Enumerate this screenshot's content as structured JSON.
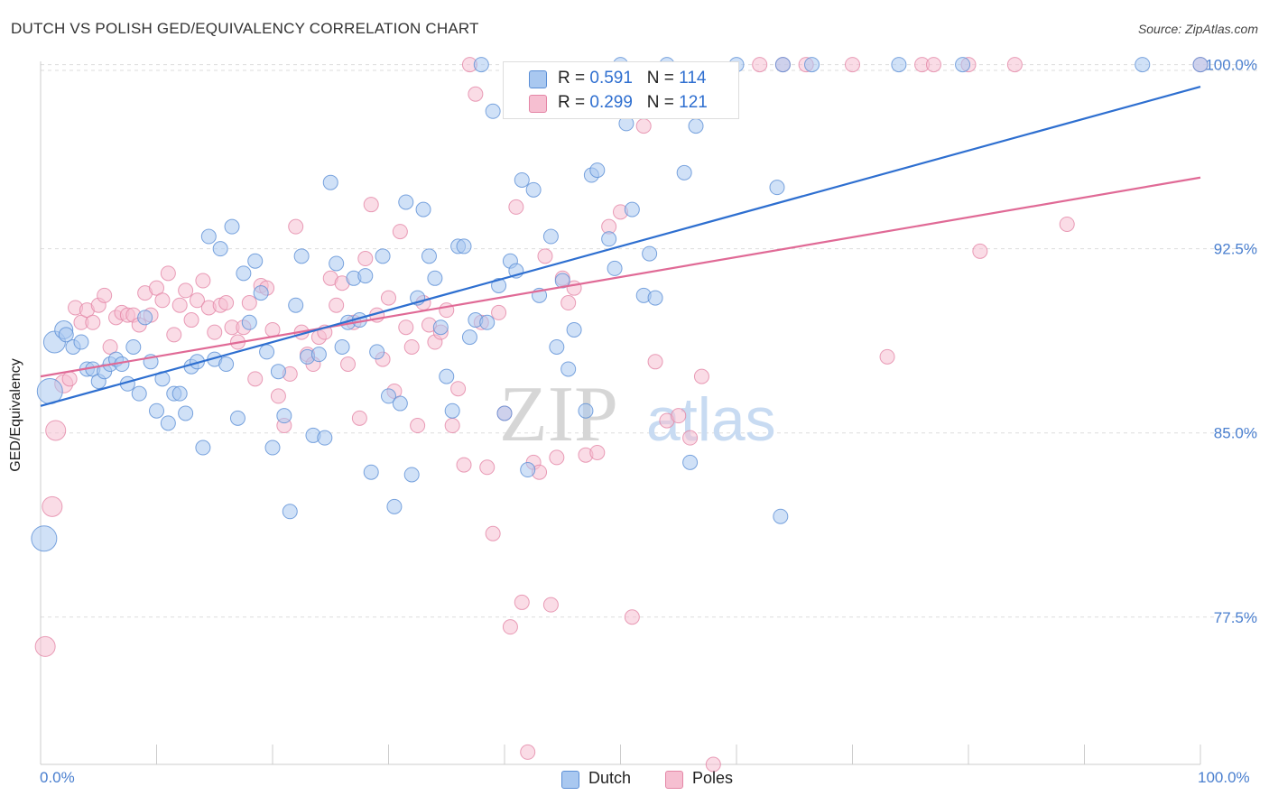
{
  "header": {
    "title": "DUTCH VS POLISH GED/EQUIVALENCY CORRELATION CHART",
    "source": "Source: ZipAtlas.com"
  },
  "legend": {
    "dutch": {
      "r_label": "R =",
      "r_value": "0.591",
      "n_label": "N =",
      "n_value": "114"
    },
    "poles": {
      "r_label": "R =",
      "r_value": "0.299",
      "n_label": "N =",
      "n_value": "121"
    },
    "bottom": {
      "dutch": "Dutch",
      "poles": "Poles"
    }
  },
  "colors": {
    "dutch_fill": "#a9c8f0",
    "dutch_stroke": "#5b8fd6",
    "dutch_line": "#2e6fd0",
    "poles_fill": "#f6bfd1",
    "poles_stroke": "#e486a6",
    "poles_line": "#e06a96",
    "tick_label": "#4a7fcf",
    "watermark": "#d0d0d0"
  },
  "watermark": {
    "zip": "ZIP",
    "atlas": "atlas"
  },
  "chart_data": {
    "type": "scatter",
    "title": "DUTCH VS POLISH GED/EQUIVALENCY CORRELATION CHART",
    "xlabel": "",
    "ylabel": "GED/Equivalency",
    "xlim": [
      0,
      100
    ],
    "ylim": [
      71.5,
      100.5
    ],
    "x_tick_labels": [
      "0.0%",
      "100.0%"
    ],
    "y_ticks": [
      77.5,
      85.0,
      92.5,
      100.0
    ],
    "y_tick_labels": [
      "77.5%",
      "85.0%",
      "92.5%",
      "100.0%"
    ],
    "grid": "horizontal dashed",
    "series": [
      {
        "name": "Dutch",
        "trend": {
          "x": [
            0,
            100
          ],
          "y": [
            86.1,
            99.1
          ]
        },
        "points": [
          [
            0.3,
            80.7,
            14
          ],
          [
            0.8,
            86.7,
            14
          ],
          [
            1.2,
            88.7,
            12
          ],
          [
            2,
            89.2,
            10
          ],
          [
            2.2,
            89,
            8
          ],
          [
            2.8,
            88.5,
            8
          ],
          [
            3.5,
            88.7,
            8
          ],
          [
            4,
            87.6,
            8
          ],
          [
            4.5,
            87.6,
            8
          ],
          [
            5,
            87.1,
            8
          ],
          [
            5.5,
            87.5,
            8
          ],
          [
            6,
            87.8,
            8
          ],
          [
            6.5,
            88,
            8
          ],
          [
            7,
            87.8,
            8
          ],
          [
            7.5,
            87,
            8
          ],
          [
            8,
            88.5,
            8
          ],
          [
            8.5,
            86.6,
            8
          ],
          [
            9,
            89.7,
            8
          ],
          [
            9.5,
            87.9,
            8
          ],
          [
            10,
            85.9,
            8
          ],
          [
            10.5,
            87.2,
            8
          ],
          [
            11,
            85.4,
            8
          ],
          [
            11.5,
            86.6,
            8
          ],
          [
            12,
            86.6,
            8
          ],
          [
            12.5,
            85.8,
            8
          ],
          [
            13,
            87.7,
            8
          ],
          [
            13.5,
            87.9,
            8
          ],
          [
            14,
            84.4,
            8
          ],
          [
            14.5,
            93,
            8
          ],
          [
            15,
            88,
            8
          ],
          [
            15.5,
            92.5,
            8
          ],
          [
            16,
            87.8,
            8
          ],
          [
            16.5,
            93.4,
            8
          ],
          [
            17,
            85.6,
            8
          ],
          [
            17.5,
            91.5,
            8
          ],
          [
            18,
            89.5,
            8
          ],
          [
            18.5,
            92,
            8
          ],
          [
            19,
            90.7,
            8
          ],
          [
            19.5,
            88.3,
            8
          ],
          [
            20,
            84.4,
            8
          ],
          [
            20.5,
            87.5,
            8
          ],
          [
            21,
            85.7,
            8
          ],
          [
            21.5,
            81.8,
            8
          ],
          [
            22,
            90.2,
            8
          ],
          [
            22.5,
            92.2,
            8
          ],
          [
            23,
            88.1,
            8
          ],
          [
            23.5,
            84.9,
            8
          ],
          [
            24,
            88.2,
            8
          ],
          [
            24.5,
            84.8,
            8
          ],
          [
            25,
            95.2,
            8
          ],
          [
            25.5,
            91.9,
            8
          ],
          [
            26,
            88.5,
            8
          ],
          [
            26.5,
            89.5,
            8
          ],
          [
            27,
            91.3,
            8
          ],
          [
            27.5,
            89.6,
            8
          ],
          [
            28,
            91.4,
            8
          ],
          [
            28.5,
            83.4,
            8
          ],
          [
            29,
            88.3,
            8
          ],
          [
            29.5,
            92.2,
            8
          ],
          [
            30,
            86.5,
            8
          ],
          [
            30.5,
            82,
            8
          ],
          [
            31,
            86.2,
            8
          ],
          [
            31.5,
            94.4,
            8
          ],
          [
            32,
            83.3,
            8
          ],
          [
            32.5,
            90.5,
            8
          ],
          [
            33,
            94.1,
            8
          ],
          [
            33.5,
            92.2,
            8
          ],
          [
            34,
            91.3,
            8
          ],
          [
            34.5,
            89.3,
            8
          ],
          [
            35,
            87.3,
            8
          ],
          [
            35.5,
            85.9,
            8
          ],
          [
            36,
            92.6,
            8
          ],
          [
            36.5,
            92.6,
            8
          ],
          [
            37,
            88.9,
            8
          ],
          [
            37.5,
            89.6,
            8
          ],
          [
            38,
            100,
            8
          ],
          [
            38.5,
            89.5,
            8
          ],
          [
            39,
            98.1,
            8
          ],
          [
            39.5,
            91,
            8
          ],
          [
            40,
            85.8,
            8
          ],
          [
            40.5,
            92,
            8
          ],
          [
            41,
            91.6,
            8
          ],
          [
            41.5,
            95.3,
            8
          ],
          [
            42,
            83.5,
            8
          ],
          [
            42.5,
            94.9,
            8
          ],
          [
            43,
            90.6,
            8
          ],
          [
            44,
            93,
            8
          ],
          [
            44.5,
            88.5,
            8
          ],
          [
            45,
            91.2,
            8
          ],
          [
            45.5,
            87.6,
            8
          ],
          [
            46,
            89.2,
            8
          ],
          [
            47,
            85.9,
            8
          ],
          [
            47.5,
            95.5,
            8
          ],
          [
            48,
            95.7,
            8
          ],
          [
            49,
            92.9,
            8
          ],
          [
            49.5,
            91.7,
            8
          ],
          [
            50,
            100,
            8
          ],
          [
            50.5,
            97.6,
            8
          ],
          [
            51,
            94.1,
            8
          ],
          [
            52,
            90.6,
            8
          ],
          [
            52.5,
            92.3,
            8
          ],
          [
            53,
            90.5,
            8
          ],
          [
            54,
            100,
            8
          ],
          [
            55.5,
            95.6,
            8
          ],
          [
            56,
            83.8,
            8
          ],
          [
            56.5,
            97.5,
            8
          ],
          [
            60,
            100,
            8
          ],
          [
            63.5,
            95,
            8
          ],
          [
            63.8,
            81.6,
            8
          ],
          [
            64,
            100,
            8
          ],
          [
            66.5,
            100,
            8
          ],
          [
            74,
            100,
            8
          ],
          [
            79.5,
            100,
            8
          ],
          [
            95,
            100,
            8
          ],
          [
            100,
            100,
            8
          ]
        ]
      },
      {
        "name": "Poles",
        "trend": {
          "x": [
            0,
            100
          ],
          "y": [
            87.3,
            95.4
          ]
        },
        "points": [
          [
            0.4,
            76.3,
            11
          ],
          [
            1,
            82,
            11
          ],
          [
            1.3,
            85.1,
            11
          ],
          [
            2,
            87,
            10
          ],
          [
            2.5,
            87.2,
            8
          ],
          [
            3,
            90.1,
            8
          ],
          [
            3.5,
            89.5,
            8
          ],
          [
            4,
            90,
            8
          ],
          [
            4.5,
            89.5,
            8
          ],
          [
            5,
            90.2,
            8
          ],
          [
            5.5,
            90.6,
            8
          ],
          [
            6,
            88.5,
            8
          ],
          [
            6.5,
            89.7,
            8
          ],
          [
            7,
            89.9,
            8
          ],
          [
            7.5,
            89.8,
            8
          ],
          [
            8,
            89.8,
            8
          ],
          [
            8.5,
            89.4,
            8
          ],
          [
            9,
            90.7,
            8
          ],
          [
            9.5,
            89.8,
            8
          ],
          [
            10,
            90.9,
            8
          ],
          [
            10.5,
            90.4,
            8
          ],
          [
            11,
            91.5,
            8
          ],
          [
            11.5,
            89,
            8
          ],
          [
            12,
            90.2,
            8
          ],
          [
            12.5,
            90.8,
            8
          ],
          [
            13,
            89.6,
            8
          ],
          [
            13.5,
            90.4,
            8
          ],
          [
            14,
            91.2,
            8
          ],
          [
            14.5,
            90.1,
            8
          ],
          [
            15,
            89.1,
            8
          ],
          [
            15.5,
            90.2,
            8
          ],
          [
            16,
            90.3,
            8
          ],
          [
            16.5,
            89.3,
            8
          ],
          [
            17,
            88.7,
            8
          ],
          [
            17.5,
            89.3,
            8
          ],
          [
            18,
            90.3,
            8
          ],
          [
            18.5,
            87.2,
            8
          ],
          [
            19,
            91,
            8
          ],
          [
            19.5,
            90.9,
            8
          ],
          [
            20,
            89.2,
            8
          ],
          [
            20.5,
            86.5,
            8
          ],
          [
            21,
            85.3,
            8
          ],
          [
            21.5,
            87.4,
            8
          ],
          [
            22,
            93.4,
            8
          ],
          [
            22.5,
            89.1,
            8
          ],
          [
            23,
            88.2,
            8
          ],
          [
            23.5,
            87.8,
            8
          ],
          [
            24,
            88.9,
            8
          ],
          [
            24.5,
            89.1,
            8
          ],
          [
            25,
            91.3,
            8
          ],
          [
            25.5,
            90.2,
            8
          ],
          [
            26,
            91.1,
            8
          ],
          [
            26.5,
            87.8,
            8
          ],
          [
            27,
            89.5,
            8
          ],
          [
            27.5,
            85.6,
            8
          ],
          [
            28,
            92.1,
            8
          ],
          [
            28.5,
            94.3,
            8
          ],
          [
            29,
            89.8,
            8
          ],
          [
            29.5,
            88,
            8
          ],
          [
            30,
            90.5,
            8
          ],
          [
            30.5,
            86.7,
            8
          ],
          [
            31,
            93.2,
            8
          ],
          [
            31.5,
            89.3,
            8
          ],
          [
            32,
            88.5,
            8
          ],
          [
            32.5,
            85.3,
            8
          ],
          [
            33,
            90.3,
            8
          ],
          [
            33.5,
            89.4,
            8
          ],
          [
            34,
            88.7,
            8
          ],
          [
            34.5,
            89.1,
            8
          ],
          [
            35,
            90,
            8
          ],
          [
            35.5,
            85.3,
            8
          ],
          [
            36,
            86.8,
            8
          ],
          [
            36.5,
            83.7,
            8
          ],
          [
            37,
            100,
            8
          ],
          [
            37.5,
            98.8,
            8
          ],
          [
            38,
            89.5,
            8
          ],
          [
            38.5,
            83.6,
            8
          ],
          [
            39,
            80.9,
            8
          ],
          [
            39.5,
            89.9,
            8
          ],
          [
            40,
            85.8,
            8
          ],
          [
            40.5,
            77.1,
            8
          ],
          [
            41,
            94.2,
            8
          ],
          [
            41.5,
            78.1,
            8
          ],
          [
            42,
            72,
            8
          ],
          [
            42.5,
            83.8,
            8
          ],
          [
            43,
            83.4,
            8
          ],
          [
            43.5,
            92.2,
            8
          ],
          [
            44,
            78,
            8
          ],
          [
            44.5,
            84,
            8
          ],
          [
            45,
            91.3,
            8
          ],
          [
            45.5,
            90.3,
            8
          ],
          [
            46,
            90.9,
            8
          ],
          [
            47,
            84.1,
            8
          ],
          [
            48,
            84.2,
            8
          ],
          [
            49,
            93.4,
            8
          ],
          [
            50,
            94,
            8
          ],
          [
            51,
            77.5,
            8
          ],
          [
            52,
            97.5,
            8
          ],
          [
            53,
            87.9,
            8
          ],
          [
            54,
            85.5,
            8
          ],
          [
            55,
            85.7,
            8
          ],
          [
            56,
            84.8,
            8
          ],
          [
            57,
            87.3,
            8
          ],
          [
            58,
            71.5,
            8
          ],
          [
            62,
            100,
            8
          ],
          [
            64,
            100,
            8
          ],
          [
            66,
            100,
            8
          ],
          [
            70,
            100,
            8
          ],
          [
            73,
            88.1,
            8
          ],
          [
            76,
            100,
            8
          ],
          [
            77,
            100,
            8
          ],
          [
            80,
            100,
            8
          ],
          [
            81,
            92.4,
            8
          ],
          [
            84,
            100,
            8
          ],
          [
            88.5,
            93.5,
            8
          ],
          [
            100,
            100,
            8
          ]
        ]
      }
    ]
  }
}
